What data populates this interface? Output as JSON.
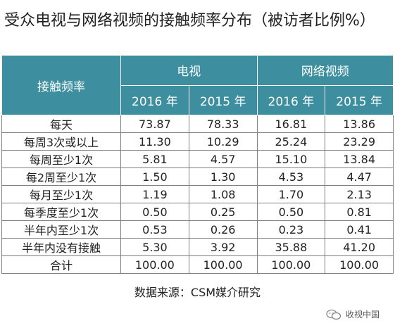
{
  "title": "受众电视与网络视频的接触频率分布（被访者比例%）",
  "header": {
    "corner": "接触频率",
    "groups": [
      "电视",
      "网络视频"
    ],
    "years": [
      "2016 年",
      "2015 年",
      "2016 年",
      "2015 年"
    ]
  },
  "rows": [
    {
      "label": "每天",
      "values": [
        "73.87",
        "78.33",
        "16.81",
        "13.86"
      ]
    },
    {
      "label": "每周3次或以上",
      "values": [
        "11.30",
        "10.29",
        "25.24",
        "23.29"
      ]
    },
    {
      "label": "每周至少1次",
      "values": [
        "5.81",
        "4.57",
        "15.10",
        "13.84"
      ]
    },
    {
      "label": "每2周至少1次",
      "values": [
        "1.50",
        "1.30",
        "4.53",
        "4.47"
      ]
    },
    {
      "label": "每月至少1次",
      "values": [
        "1.19",
        "1.08",
        "1.70",
        "2.13"
      ]
    },
    {
      "label": "每季度至少1次",
      "values": [
        "0.50",
        "0.25",
        "0.50",
        "0.81"
      ]
    },
    {
      "label": "半年内至少1次",
      "values": [
        "0.53",
        "0.26",
        "0.23",
        "0.41"
      ]
    },
    {
      "label": "半年内没有接触",
      "values": [
        "5.30",
        "3.92",
        "35.88",
        "41.20"
      ]
    },
    {
      "label": "合计",
      "values": [
        "100.00",
        "100.00",
        "100.00",
        "100.00"
      ]
    }
  ],
  "source": "数据来源：CSM媒介研究",
  "watermark": "收视中国",
  "colors": {
    "header_bg": "#3d8e9e",
    "header_text": "#ffffff",
    "border": "#7f7f7f"
  },
  "chart_data": {
    "type": "table",
    "title": "受众电视与网络视频的接触频率分布（被访者比例%）",
    "row_header": "接触频率",
    "column_groups": [
      "电视",
      "网络视频"
    ],
    "columns": [
      "电视 2016 年",
      "电视 2015 年",
      "网络视频 2016 年",
      "网络视频 2015 年"
    ],
    "categories": [
      "每天",
      "每周3次或以上",
      "每周至少1次",
      "每2周至少1次",
      "每月至少1次",
      "每季度至少1次",
      "半年内至少1次",
      "半年内没有接触",
      "合计"
    ],
    "series": [
      {
        "name": "电视 2016 年",
        "values": [
          73.87,
          11.3,
          5.81,
          1.5,
          1.19,
          0.5,
          0.53,
          5.3,
          100.0
        ]
      },
      {
        "name": "电视 2015 年",
        "values": [
          78.33,
          10.29,
          4.57,
          1.3,
          1.08,
          0.25,
          0.26,
          3.92,
          100.0
        ]
      },
      {
        "name": "网络视频 2016 年",
        "values": [
          16.81,
          25.24,
          15.1,
          4.53,
          1.7,
          0.5,
          0.23,
          35.88,
          100.0
        ]
      },
      {
        "name": "网络视频 2015 年",
        "values": [
          13.86,
          23.29,
          13.84,
          4.47,
          2.13,
          0.81,
          0.41,
          41.2,
          100.0
        ]
      }
    ]
  }
}
